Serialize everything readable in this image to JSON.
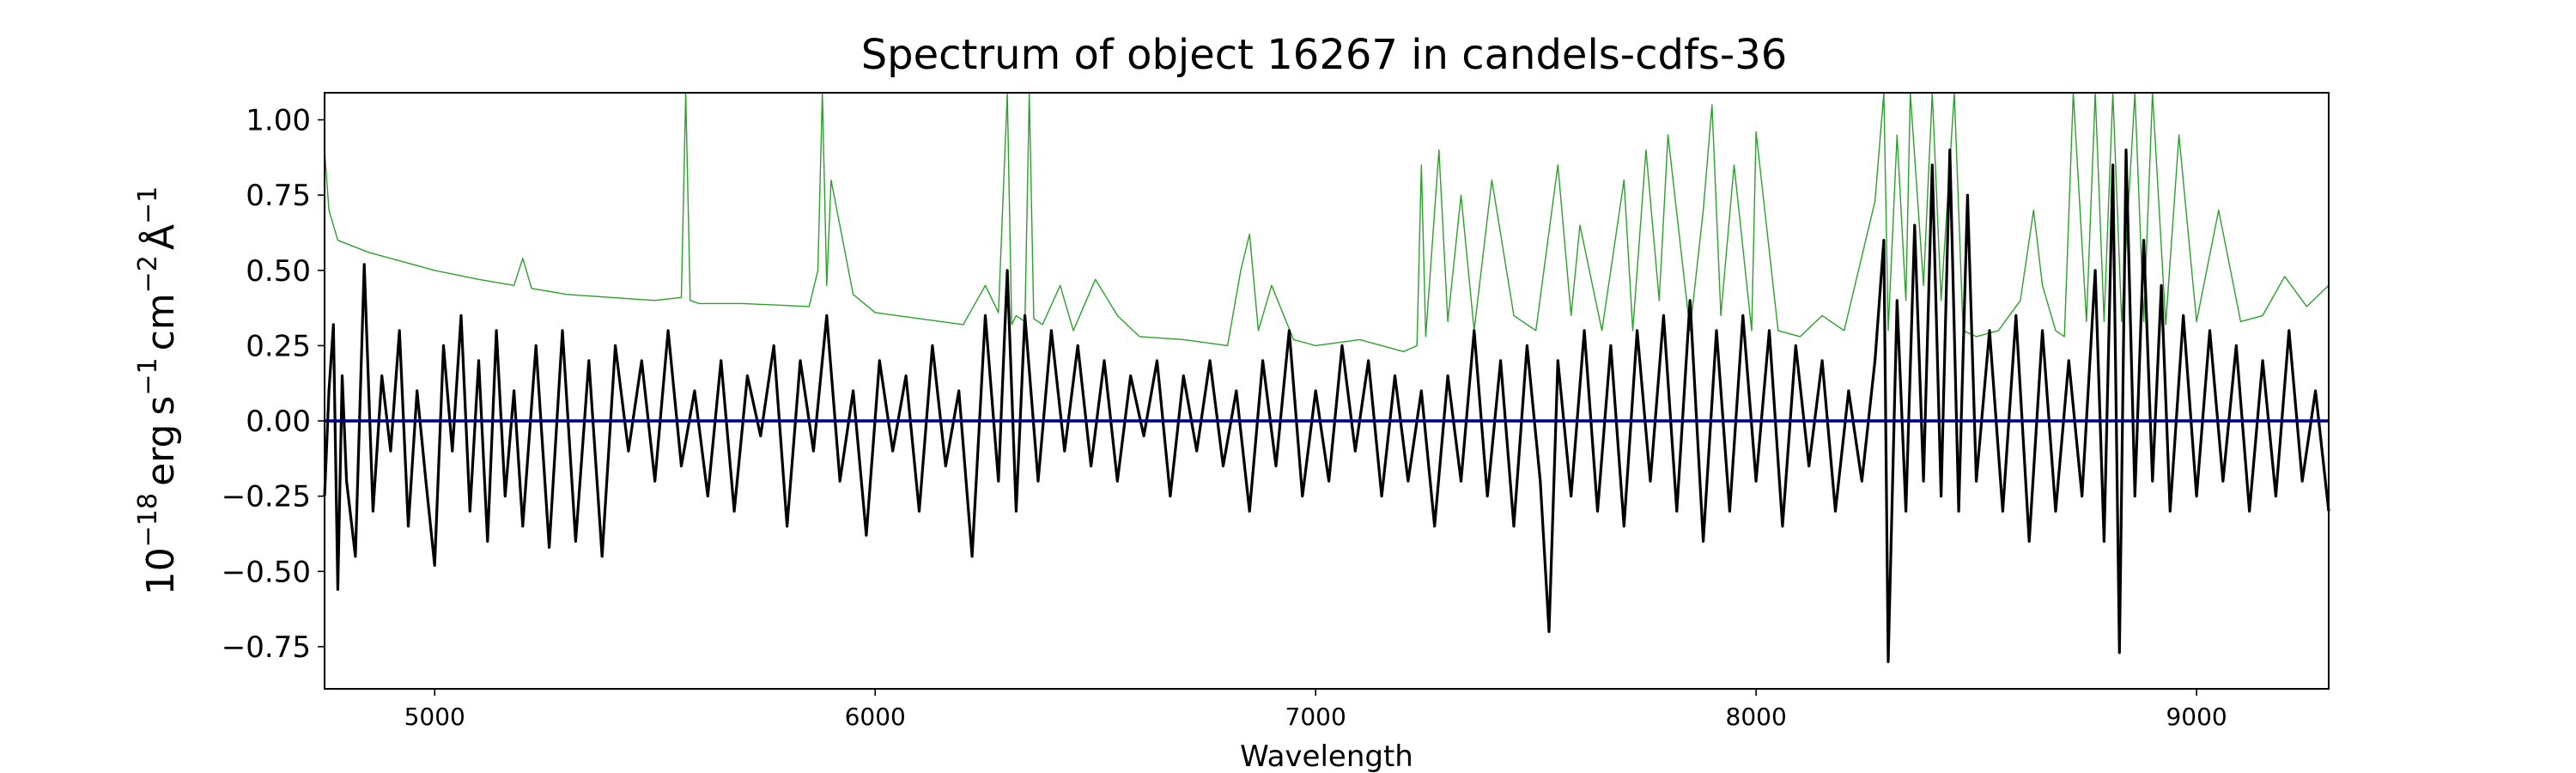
{
  "chart_data": {
    "type": "line",
    "title": "Spectrum of object 16267 in candels-cdfs-36",
    "xlabel": "Wavelength",
    "ylabel_base": "10",
    "ylabel_exp": "−18",
    "ylabel_rest": " erg s",
    "ylabel_units": [
      "erg",
      "s",
      "−1",
      "cm",
      "−2",
      "Å",
      "−1"
    ],
    "xlim": [
      4750,
      9300
    ],
    "ylim": [
      -0.89,
      1.09
    ],
    "xticks": [
      5000,
      6000,
      7000,
      8000,
      9000
    ],
    "xtick_labels": [
      "5000",
      "6000",
      "7000",
      "8000",
      "9000"
    ],
    "yticks": [
      -0.75,
      -0.5,
      -0.25,
      0.0,
      0.25,
      0.5,
      0.75,
      1.0
    ],
    "ytick_labels": [
      "−0.75",
      "−0.50",
      "−0.25",
      "0.00",
      "0.25",
      "0.50",
      "0.75",
      "1.00"
    ],
    "grid": false,
    "colors": {
      "flux": "#000000",
      "error": "#2ca02c",
      "zero": "#00008b",
      "axes": "#000000"
    },
    "series": [
      {
        "key": "error",
        "x": [
          4750,
          4760,
          4780,
          4850,
          4950,
          5000,
          5100,
          5180,
          5200,
          5220,
          5300,
          5400,
          5500,
          5560,
          5570,
          5580,
          5600,
          5700,
          5850,
          5870,
          5880,
          5890,
          5900,
          5950,
          6000,
          6100,
          6200,
          6250,
          6280,
          6300,
          6310,
          6320,
          6340,
          6350,
          6360,
          6380,
          6420,
          6450,
          6500,
          6550,
          6600,
          6700,
          6800,
          6830,
          6850,
          6870,
          6900,
          6950,
          7000,
          7100,
          7200,
          7230,
          7240,
          7250,
          7280,
          7300,
          7330,
          7360,
          7400,
          7450,
          7500,
          7550,
          7580,
          7600,
          7650,
          7700,
          7720,
          7750,
          7780,
          7800,
          7850,
          7880,
          7900,
          7920,
          7950,
          7990,
          8000,
          8050,
          8100,
          8150,
          8200,
          8270,
          8290,
          8300,
          8320,
          8340,
          8350,
          8380,
          8400,
          8420,
          8450,
          8470,
          8500,
          8550,
          8600,
          8630,
          8650,
          8680,
          8700,
          8720,
          8750,
          8770,
          8790,
          8810,
          8830,
          8860,
          8880,
          8900,
          8930,
          8960,
          9000,
          9050,
          9100,
          9150,
          9200,
          9250,
          9300
        ],
        "y": [
          0.9,
          0.7,
          0.6,
          0.56,
          0.52,
          0.5,
          0.47,
          0.45,
          0.54,
          0.44,
          0.42,
          0.41,
          0.4,
          0.41,
          1.09,
          0.4,
          0.39,
          0.39,
          0.38,
          0.5,
          1.09,
          0.45,
          0.8,
          0.42,
          0.36,
          0.34,
          0.32,
          0.45,
          0.36,
          1.09,
          0.32,
          0.35,
          0.33,
          1.09,
          0.34,
          0.32,
          0.45,
          0.3,
          0.47,
          0.35,
          0.28,
          0.27,
          0.25,
          0.5,
          0.62,
          0.3,
          0.45,
          0.27,
          0.25,
          0.27,
          0.23,
          0.25,
          0.85,
          0.28,
          0.9,
          0.33,
          0.75,
          0.3,
          0.8,
          0.35,
          0.3,
          0.85,
          0.35,
          0.65,
          0.3,
          0.8,
          0.3,
          0.9,
          0.4,
          0.95,
          0.3,
          0.7,
          1.05,
          0.35,
          0.85,
          0.3,
          0.96,
          0.3,
          0.28,
          0.35,
          0.3,
          0.73,
          1.09,
          0.3,
          0.95,
          0.4,
          1.09,
          0.45,
          1.09,
          0.4,
          1.09,
          0.3,
          0.28,
          0.3,
          0.4,
          0.7,
          0.45,
          0.3,
          0.28,
          1.09,
          0.33,
          1.09,
          0.33,
          1.09,
          0.33,
          1.09,
          0.33,
          1.09,
          0.32,
          0.95,
          0.33,
          0.7,
          0.33,
          0.35,
          0.48,
          0.38,
          0.45
        ]
      },
      {
        "key": "flux",
        "x": [
          4750,
          4760,
          4770,
          4780,
          4790,
          4800,
          4820,
          4840,
          4860,
          4880,
          4900,
          4920,
          4940,
          4960,
          4980,
          5000,
          5020,
          5040,
          5060,
          5080,
          5100,
          5120,
          5140,
          5160,
          5180,
          5200,
          5230,
          5260,
          5290,
          5320,
          5350,
          5380,
          5410,
          5440,
          5470,
          5500,
          5530,
          5560,
          5590,
          5620,
          5650,
          5680,
          5710,
          5740,
          5770,
          5800,
          5830,
          5860,
          5890,
          5920,
          5950,
          5980,
          6010,
          6040,
          6070,
          6100,
          6130,
          6160,
          6190,
          6220,
          6250,
          6280,
          6300,
          6320,
          6340,
          6370,
          6400,
          6430,
          6460,
          6490,
          6520,
          6550,
          6580,
          6610,
          6640,
          6670,
          6700,
          6730,
          6760,
          6790,
          6820,
          6850,
          6880,
          6910,
          6940,
          6970,
          7000,
          7030,
          7060,
          7090,
          7120,
          7150,
          7180,
          7210,
          7240,
          7270,
          7300,
          7330,
          7360,
          7390,
          7420,
          7450,
          7480,
          7510,
          7530,
          7550,
          7580,
          7610,
          7640,
          7670,
          7700,
          7730,
          7760,
          7790,
          7820,
          7850,
          7880,
          7910,
          7940,
          7970,
          8000,
          8030,
          8060,
          8090,
          8120,
          8150,
          8180,
          8210,
          8240,
          8270,
          8290,
          8300,
          8320,
          8340,
          8360,
          8380,
          8400,
          8420,
          8440,
          8460,
          8480,
          8500,
          8530,
          8560,
          8590,
          8620,
          8650,
          8680,
          8710,
          8740,
          8770,
          8790,
          8810,
          8825,
          8840,
          8860,
          8880,
          8900,
          8920,
          8940,
          8970,
          9000,
          9030,
          9060,
          9090,
          9120,
          9150,
          9180,
          9210,
          9240,
          9270,
          9300
        ],
        "y": [
          -0.25,
          0.1,
          0.32,
          -0.56,
          0.15,
          -0.2,
          -0.45,
          0.52,
          -0.3,
          0.15,
          -0.1,
          0.3,
          -0.35,
          0.1,
          -0.2,
          -0.48,
          0.25,
          -0.1,
          0.35,
          -0.3,
          0.2,
          -0.4,
          0.3,
          -0.25,
          0.1,
          -0.35,
          0.25,
          -0.42,
          0.3,
          -0.4,
          0.2,
          -0.45,
          0.25,
          -0.1,
          0.2,
          -0.2,
          0.3,
          -0.15,
          0.1,
          -0.25,
          0.2,
          -0.3,
          0.15,
          -0.05,
          0.25,
          -0.35,
          0.2,
          -0.1,
          0.35,
          -0.2,
          0.1,
          -0.38,
          0.2,
          -0.1,
          0.15,
          -0.3,
          0.25,
          -0.15,
          0.1,
          -0.45,
          0.35,
          -0.2,
          0.5,
          -0.3,
          0.35,
          -0.2,
          0.3,
          -0.1,
          0.25,
          -0.15,
          0.2,
          -0.2,
          0.15,
          -0.05,
          0.2,
          -0.25,
          0.15,
          -0.1,
          0.2,
          -0.15,
          0.1,
          -0.3,
          0.2,
          -0.15,
          0.3,
          -0.25,
          0.1,
          -0.2,
          0.25,
          -0.1,
          0.2,
          -0.25,
          0.15,
          -0.2,
          0.1,
          -0.35,
          0.15,
          -0.2,
          0.3,
          -0.25,
          0.2,
          -0.35,
          0.25,
          -0.2,
          -0.7,
          0.2,
          -0.25,
          0.3,
          -0.3,
          0.25,
          -0.35,
          0.3,
          -0.2,
          0.35,
          -0.3,
          0.4,
          -0.4,
          0.3,
          -0.3,
          0.35,
          -0.2,
          0.3,
          -0.35,
          0.25,
          -0.15,
          0.2,
          -0.3,
          0.1,
          -0.2,
          0.2,
          0.6,
          -0.8,
          0.4,
          -0.3,
          0.65,
          -0.2,
          0.85,
          -0.25,
          0.9,
          -0.3,
          0.75,
          -0.2,
          0.3,
          -0.3,
          0.35,
          -0.4,
          0.3,
          -0.3,
          0.2,
          -0.25,
          0.5,
          -0.4,
          0.85,
          -0.77,
          0.9,
          -0.25,
          0.6,
          -0.2,
          0.45,
          -0.3,
          0.35,
          -0.25,
          0.3,
          -0.2,
          0.25,
          -0.3,
          0.2,
          -0.25,
          0.3,
          -0.2,
          0.1,
          -0.3
        ]
      },
      {
        "key": "zero",
        "x": [
          4750,
          9300
        ],
        "y": [
          0.0,
          0.0
        ]
      }
    ]
  }
}
